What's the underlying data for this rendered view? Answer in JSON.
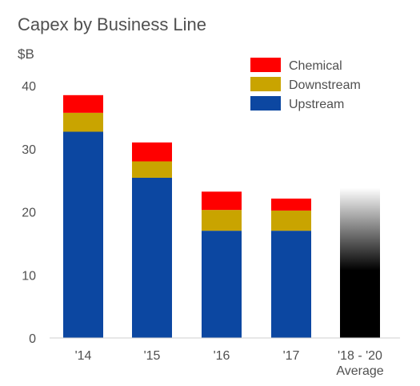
{
  "chart_data": {
    "type": "bar",
    "stacked": true,
    "title": "Capex by Business Line",
    "ylabel": "$B",
    "ylim": [
      0,
      40
    ],
    "yticks": [
      "0",
      "10",
      "20",
      "30",
      "40"
    ],
    "categories": [
      "'14",
      "'15",
      "'16",
      "'17",
      "'18 - '20\nAverage"
    ],
    "series": [
      {
        "name": "Upstream",
        "color": "#0c47a1",
        "values": [
          32.7,
          25.4,
          17.0,
          17.0,
          null
        ]
      },
      {
        "name": "Downstream",
        "color": "#c9a400",
        "values": [
          3.0,
          2.6,
          3.3,
          3.2,
          null
        ]
      },
      {
        "name": "Chemical",
        "color": "#ff0000",
        "values": [
          2.8,
          3.0,
          2.9,
          1.9,
          null
        ]
      }
    ],
    "total_only": [
      null,
      null,
      null,
      null,
      23.8
    ],
    "total_only_style": "black-gradient",
    "legend_position": "top-right"
  }
}
